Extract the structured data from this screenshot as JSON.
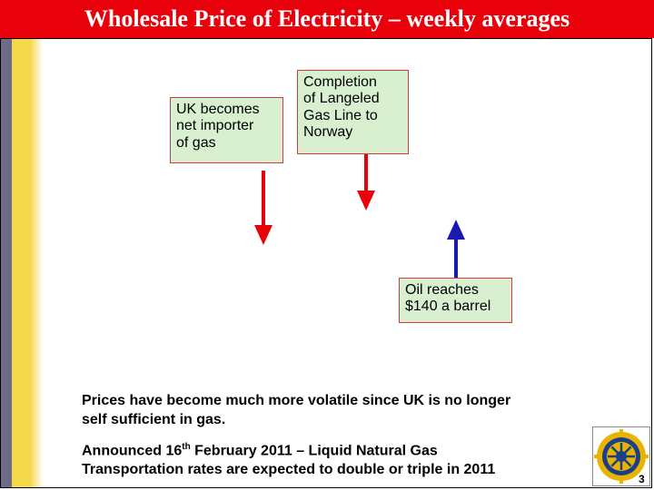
{
  "slide": {
    "title": "Wholesale Price of Electricity – weekly averages",
    "page_number": "3"
  },
  "callouts": [
    {
      "lines": [
        "UK becomes",
        "net importer",
        "of gas"
      ],
      "arrow": "down"
    },
    {
      "lines": [
        "Completion",
        "of Langeled",
        "Gas Line to",
        "Norway"
      ],
      "arrow": "down"
    },
    {
      "lines": [
        "Oil reaches",
        "$140 a barrel"
      ],
      "arrow": "up"
    }
  ],
  "body": {
    "paragraph1_line1": "Prices have become much more volatile since UK is no longer",
    "paragraph1_line2": "self sufficient in gas.",
    "paragraph2_pre": "Announced 16",
    "paragraph2_sup": "th",
    "paragraph2_post": " February 2011 – Liquid Natural Gas",
    "paragraph2_line2": "Transportation rates are expected to double or triple in 2011"
  },
  "colors": {
    "title_bar": "#e8000b",
    "arrow_red": "#e8000b",
    "arrow_blue": "#1a1ab0",
    "note_fill": "#d8f0d0",
    "logo_gold": "#e8b400",
    "logo_blue": "#1b3f8b"
  },
  "logo": {
    "icon": "rotary-wheel-icon"
  }
}
